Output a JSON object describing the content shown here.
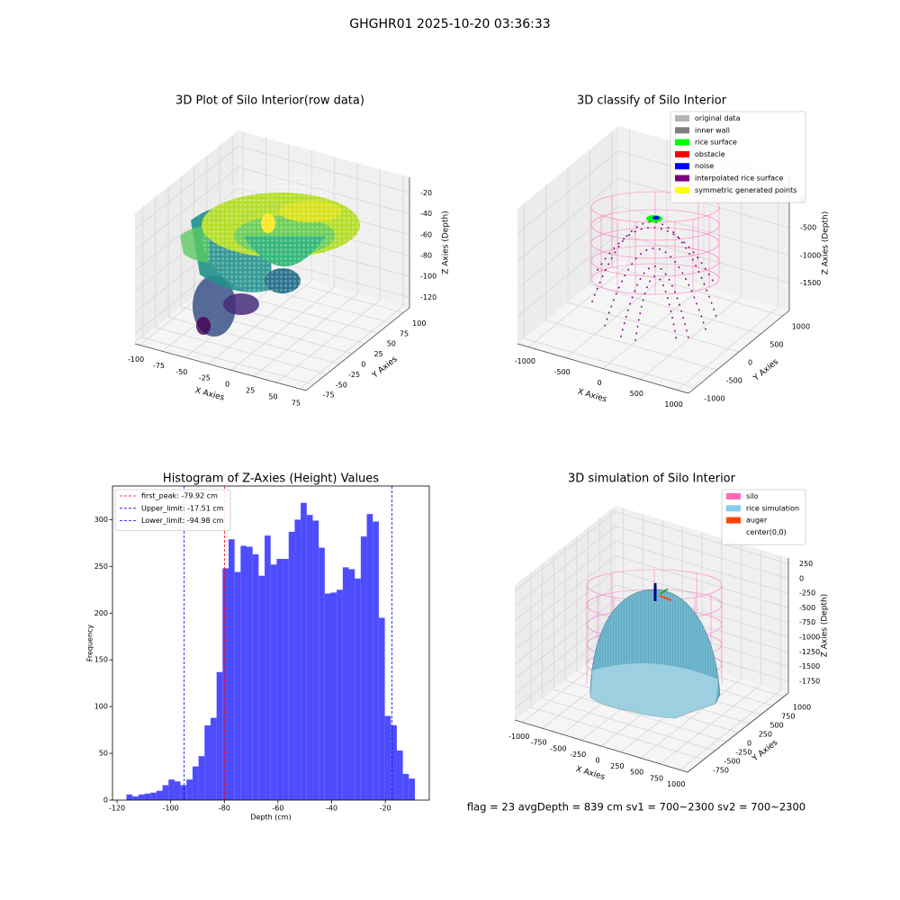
{
  "suptitle": "GHGHR01 2025-10-20 03:36:33",
  "footer": "flag = 23  avgDepth = 839 cm  sv1 = 700~2300  sv2 = 700~2300",
  "chart_data": [
    {
      "type": "scatter3d",
      "title": "3D Plot of Silo Interior(row data)",
      "xlabel": "X Axies",
      "ylabel": "Y Axies",
      "zlabel": "Z Axies (Depth)",
      "xlim": [
        -105,
        82
      ],
      "ylim": [
        -90,
        112
      ],
      "zlim": [
        -130,
        -5
      ],
      "xticks": [
        -100,
        -75,
        -50,
        -25,
        0,
        25,
        50,
        75
      ],
      "yticks": [
        -75,
        -50,
        -25,
        0,
        25,
        50,
        75,
        100
      ],
      "zticks": [
        -120,
        -100,
        -80,
        -60,
        -40,
        -20
      ]
    },
    {
      "type": "scatter3d",
      "title": "3D classify of Silo Interior",
      "xlabel": "X Axies",
      "ylabel": "Y Axies",
      "zlabel": "Z Axies (Depth)",
      "xlim": [
        -1150,
        1150
      ],
      "ylim": [
        -1150,
        1150
      ],
      "zlim": [
        -2000,
        450
      ],
      "xticks": [
        -1000,
        -500,
        0,
        500,
        1000
      ],
      "yticks": [
        -1000,
        -500,
        0,
        500,
        1000
      ],
      "zticks": [
        -1500,
        -1000,
        -500,
        0
      ],
      "legend": [
        {
          "name": "original data",
          "color": "#b3b3b3"
        },
        {
          "name": "inner wall",
          "color": "#808080"
        },
        {
          "name": "rice surface",
          "color": "#00ff00"
        },
        {
          "name": "obstacle",
          "color": "#ff0000"
        },
        {
          "name": "noise",
          "color": "#0000ff"
        },
        {
          "name": "interpolated rice surface",
          "color": "#800080"
        },
        {
          "name": "symmetric generated points",
          "color": "#ffff00"
        }
      ]
    },
    {
      "type": "histogram",
      "title": "Histogram of Z-Axies (Height) Values",
      "xlabel": "Depth (cm)",
      "ylabel": "Frequency",
      "color": "#4d4dff",
      "bins": [
        -116.5,
        -114.26,
        -112.02,
        -109.78,
        -107.54,
        -105.3,
        -103.06,
        -100.82,
        -98.58,
        -96.34,
        -94.1,
        -91.86,
        -89.62,
        -87.38,
        -85.14,
        -82.9,
        -80.66,
        -78.42,
        -76.18,
        -73.94,
        -71.7,
        -69.46,
        -67.22,
        -64.98,
        -62.74,
        -60.5,
        -58.26,
        -56.02,
        -53.78,
        -51.54,
        -49.3,
        -47.06,
        -44.82,
        -42.58,
        -40.34,
        -38.1,
        -35.86,
        -33.62,
        -31.38,
        -29.14,
        -26.9,
        -24.66,
        -22.42,
        -20.18,
        -17.94,
        -15.7,
        -13.46,
        -11.22,
        -8.98
      ],
      "values": [
        6,
        4,
        6,
        7,
        8,
        10,
        16,
        22,
        20,
        16,
        22,
        36,
        47,
        80,
        88,
        137,
        248,
        279,
        244,
        272,
        271,
        263,
        240,
        283,
        252,
        258,
        258,
        287,
        300,
        318,
        305,
        299,
        270,
        221,
        222,
        225,
        249,
        247,
        237,
        282,
        306,
        298,
        195,
        90,
        80,
        53,
        28,
        23
      ],
      "xlim": [
        -121.7,
        -3.6
      ],
      "ylim": [
        0,
        336
      ],
      "xticks": [
        -120,
        -100,
        -80,
        -60,
        -40,
        -20
      ],
      "yticks": [
        0,
        50,
        100,
        150,
        200,
        250,
        300
      ],
      "legend_position": "upper left",
      "vlines": [
        {
          "name": "first_peak: -79.92 cm",
          "value": -79.92,
          "color": "#ff0000"
        },
        {
          "name": "Upper_limit: -17.51 cm",
          "value": -17.51,
          "color": "#0000ff"
        },
        {
          "name": "Lower_limit: -94.98 cm",
          "value": -94.98,
          "color": "#0000ff"
        }
      ]
    },
    {
      "type": "surface3d",
      "title": "3D simulation of Silo Interior",
      "xlabel": "X Axies",
      "ylabel": "Y Axies",
      "zlabel": "Z Axies (Depth)",
      "xlim": [
        -1100,
        1100
      ],
      "ylim": [
        -1100,
        1100
      ],
      "zlim": [
        -1950,
        350
      ],
      "xticks": [
        -1000,
        -750,
        -500,
        -250,
        0,
        250,
        500,
        750,
        1000
      ],
      "yticks": [
        -750,
        -500,
        -250,
        0,
        250,
        500,
        750,
        1000
      ],
      "zticks": [
        -1750,
        -1500,
        -1250,
        -1000,
        -750,
        -500,
        -250,
        0,
        250
      ],
      "legend": [
        {
          "name": "silo",
          "color": "#ff69b4"
        },
        {
          "name": "rice simulation",
          "color": "#87ceeb"
        },
        {
          "name": "auger",
          "color": "#ff4500"
        },
        {
          "name": "center(0,0)",
          "color": "#ffffff"
        }
      ]
    }
  ]
}
